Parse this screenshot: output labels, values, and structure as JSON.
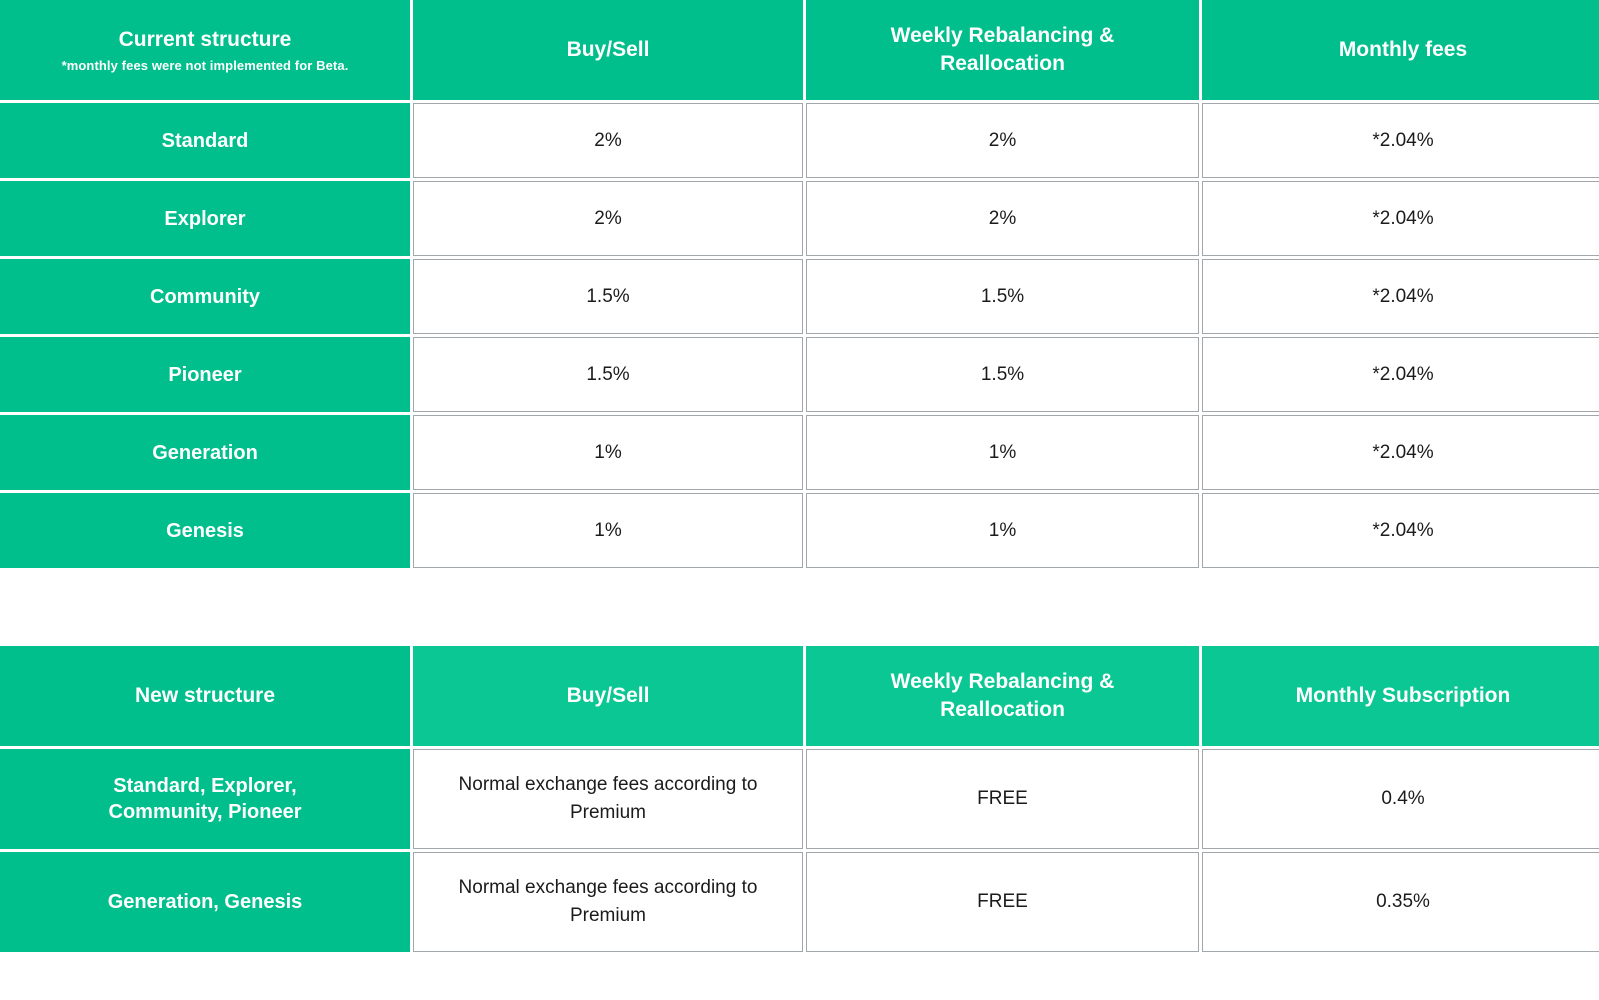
{
  "colors": {
    "green": "#00BF8C",
    "green_light": "#0BC794",
    "border_gray": "#A2A7AB",
    "text_on_green": "#FFFFFF",
    "text_on_white": "#1B1B1B"
  },
  "tables": {
    "current": {
      "header": {
        "title": "Current structure",
        "subtitle": "*monthly fees were not implemented for Beta.",
        "buy_sell": "Buy/Sell",
        "weekly": "Weekly Rebalancing & Reallocation",
        "monthly": "Monthly fees"
      },
      "rows": [
        {
          "tier": "Standard",
          "buy_sell": "2%",
          "weekly": "2%",
          "monthly": "*2.04%"
        },
        {
          "tier": "Explorer",
          "buy_sell": "2%",
          "weekly": "2%",
          "monthly": "*2.04%"
        },
        {
          "tier": "Community",
          "buy_sell": "1.5%",
          "weekly": "1.5%",
          "monthly": "*2.04%"
        },
        {
          "tier": "Pioneer",
          "buy_sell": "1.5%",
          "weekly": "1.5%",
          "monthly": "*2.04%"
        },
        {
          "tier": "Generation",
          "buy_sell": "1%",
          "weekly": "1%",
          "monthly": "*2.04%"
        },
        {
          "tier": "Genesis",
          "buy_sell": "1%",
          "weekly": "1%",
          "monthly": "*2.04%"
        }
      ]
    },
    "new": {
      "header": {
        "title": "New structure",
        "buy_sell": "Buy/Sell",
        "weekly": "Weekly Rebalancing & Reallocation",
        "monthly": "Monthly Subscription"
      },
      "rows": [
        {
          "tier": "Standard, Explorer, Community, Pioneer",
          "buy_sell": "Normal exchange fees according to Premium",
          "weekly": "FREE",
          "monthly": "0.4%"
        },
        {
          "tier": "Generation, Genesis",
          "buy_sell": "Normal exchange fees according to Premium",
          "weekly": "FREE",
          "monthly": "0.35%"
        }
      ]
    }
  }
}
